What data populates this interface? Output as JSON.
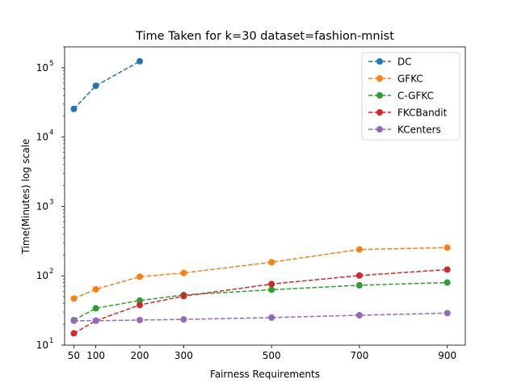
{
  "chart_data": {
    "type": "line",
    "title": "Time Taken for k=30 dataset=fashion-mnist",
    "xlabel": "Fairness Requirements",
    "ylabel": "Time(Minutes) log scale",
    "yscale": "log",
    "xlim": [
      29,
      941
    ],
    "ylim": [
      10,
      200000
    ],
    "xticks": [
      50,
      100,
      200,
      300,
      500,
      700,
      900
    ],
    "yticks": [
      {
        "value": 10,
        "base": "10",
        "exp": "1"
      },
      {
        "value": 100,
        "base": "10",
        "exp": "2"
      },
      {
        "value": 1000,
        "base": "10",
        "exp": "3"
      },
      {
        "value": 10000,
        "base": "10",
        "exp": "4"
      },
      {
        "value": 100000,
        "base": "10",
        "exp": "5"
      }
    ],
    "grid": false,
    "legend_position": "top-right",
    "series": [
      {
        "name": "DC",
        "color": "#1f77b4",
        "x": [
          50,
          100,
          200
        ],
        "values": [
          25500,
          55000,
          124000
        ]
      },
      {
        "name": "GFKC",
        "color": "#ff7f0e",
        "x": [
          50,
          100,
          200,
          300,
          500,
          700,
          900
        ],
        "values": [
          47,
          64,
          97,
          110,
          157,
          240,
          255
        ]
      },
      {
        "name": "C-GFKC",
        "color": "#2ca02c",
        "x": [
          50,
          100,
          200,
          300,
          500,
          700,
          900
        ],
        "values": [
          23,
          34,
          44,
          53,
          63,
          73,
          80
        ]
      },
      {
        "name": "FKCBandit",
        "color": "#d62728",
        "x": [
          50,
          100,
          200,
          300,
          500,
          700,
          900
        ],
        "values": [
          14.8,
          22.5,
          38,
          51,
          76,
          101,
          123
        ]
      },
      {
        "name": "KCenters",
        "color": "#9467bd",
        "x": [
          50,
          100,
          200,
          300,
          500,
          700,
          900
        ],
        "values": [
          22.5,
          22.5,
          23,
          23.5,
          25,
          27,
          29
        ]
      }
    ]
  }
}
